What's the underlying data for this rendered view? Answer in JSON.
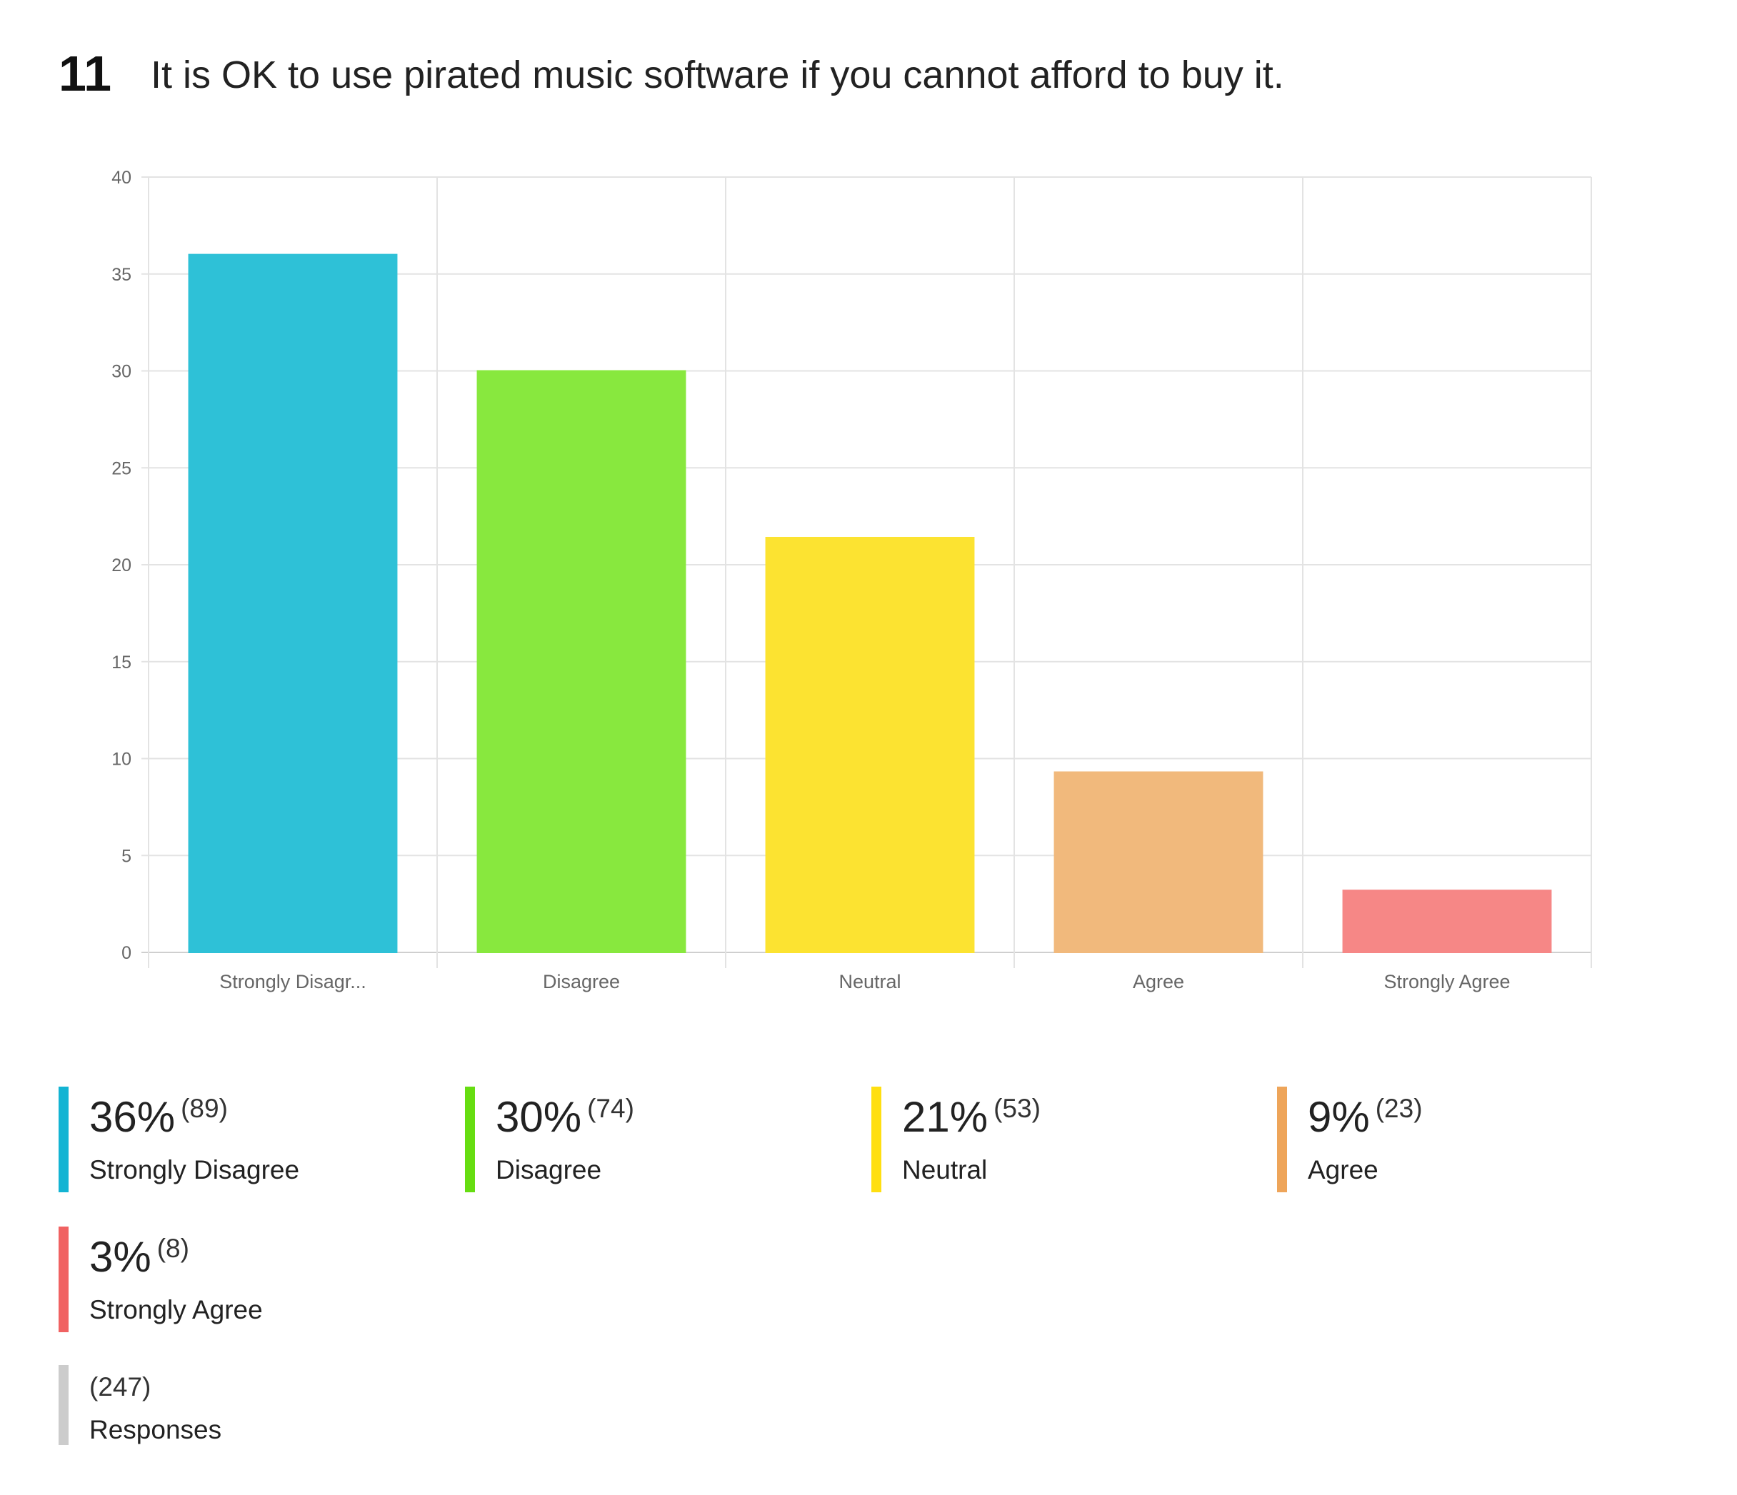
{
  "question": {
    "number": "11",
    "text": "It is OK to use pirated music software if you cannot afford to buy it."
  },
  "chart_data": {
    "type": "bar",
    "categories": [
      "Strongly Disagr...",
      "Disagree",
      "Neutral",
      "Agree",
      "Strongly Agree"
    ],
    "values": [
      36,
      30,
      21.4,
      9.3,
      3.2
    ],
    "colors": [
      "#2ec1d7",
      "#88e83e",
      "#fce331",
      "#f1b97c",
      "#f68786"
    ],
    "ylim": [
      0,
      40
    ],
    "yticks": [
      0,
      5,
      10,
      15,
      20,
      25,
      30,
      35,
      40
    ],
    "grid": true,
    "title": "",
    "xlabel": "",
    "ylabel": ""
  },
  "legend": [
    {
      "percent": "36%",
      "count": "(89)",
      "label": "Strongly Disagree",
      "color": "#13b4d3"
    },
    {
      "percent": "30%",
      "count": "(74)",
      "label": "Disagree",
      "color": "#66dd11"
    },
    {
      "percent": "21%",
      "count": "(53)",
      "label": "Neutral",
      "color": "#ffdf11"
    },
    {
      "percent": "9%",
      "count": "(23)",
      "label": "Agree",
      "color": "#eea55a"
    },
    {
      "percent": "3%",
      "count": "(8)",
      "label": "Strongly Agree",
      "color": "#f06262"
    }
  ],
  "responses": {
    "count": "(247)",
    "label": "Responses",
    "color": "#cccccc"
  }
}
